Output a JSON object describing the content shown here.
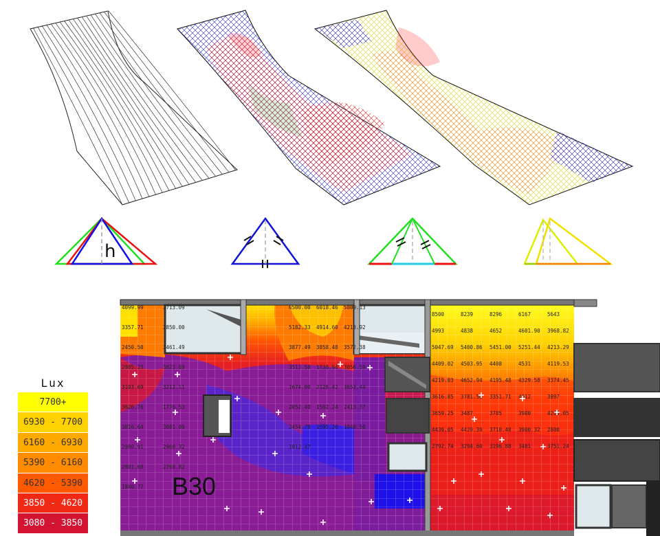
{
  "triangle_label_h": "h",
  "legend": {
    "title": "Lux",
    "items": [
      {
        "label": "7700+",
        "color": "#ffff00",
        "text_color": "#333333"
      },
      {
        "label": "6930 - 7700",
        "color": "#ffd200",
        "text_color": "#333333"
      },
      {
        "label": "6160 - 6930",
        "color": "#ffaa00",
        "text_color": "#333333"
      },
      {
        "label": "5390 - 6160",
        "color": "#ff8c00",
        "text_color": "#333333"
      },
      {
        "label": "4620 - 5390",
        "color": "#ff5a00",
        "text_color": "#333333"
      },
      {
        "label": "3850 - 4620",
        "color": "#f02814",
        "text_color": "#ffffff"
      },
      {
        "label": "3080 - 3850",
        "color": "#d21432",
        "text_color": "#ffffff"
      }
    ]
  },
  "plan": {
    "room_label": "B30",
    "left_values": [
      "4099.99",
      "3713.09",
      "3357.71",
      "2850.00",
      "2450.50",
      "3461.49",
      "2985.23",
      "3823.69",
      "3103.69",
      "3212.11",
      "3626.76",
      "1776.53",
      "3016.64",
      "3081.09",
      "2980.91",
      "2960.32",
      "2801.68",
      "2768.82",
      "1840.77"
    ],
    "center_values": [
      "6500.00",
      "6018.46",
      "5809.13",
      "5182.33",
      "4914.60",
      "4213.92",
      "3877.49",
      "3858.48",
      "3572.38",
      "3513.58",
      "1738.94",
      "3056.59",
      "1674.00",
      "2128.42",
      "3653.44",
      "2052.40",
      "1582.24",
      "2413.37",
      "2454.78",
      "1595.20",
      "1946.50",
      "1812.47"
    ],
    "right_values": [
      "8500",
      "8239",
      "8296",
      "6167",
      "5643",
      "4993",
      "4838",
      "4652",
      "4601.90",
      "3968.82",
      "5047.69",
      "5400.86",
      "5451.00",
      "5251.44",
      "4213.29",
      "4409.02",
      "4503.95",
      "4408",
      "4531",
      "4119.53",
      "4219.03",
      "4652.94",
      "4195.48",
      "4329.58",
      "3374.45",
      "3616.85",
      "3781.58",
      "3351.71",
      "4012",
      "3897",
      "3659.25",
      "3487",
      "3785",
      "3980",
      "4269.05",
      "4439.05",
      "4429.39",
      "3710.48",
      "3900.32",
      "2800",
      "2792.74",
      "3294.60",
      "3196.88",
      "3481",
      "3751.24"
    ]
  }
}
